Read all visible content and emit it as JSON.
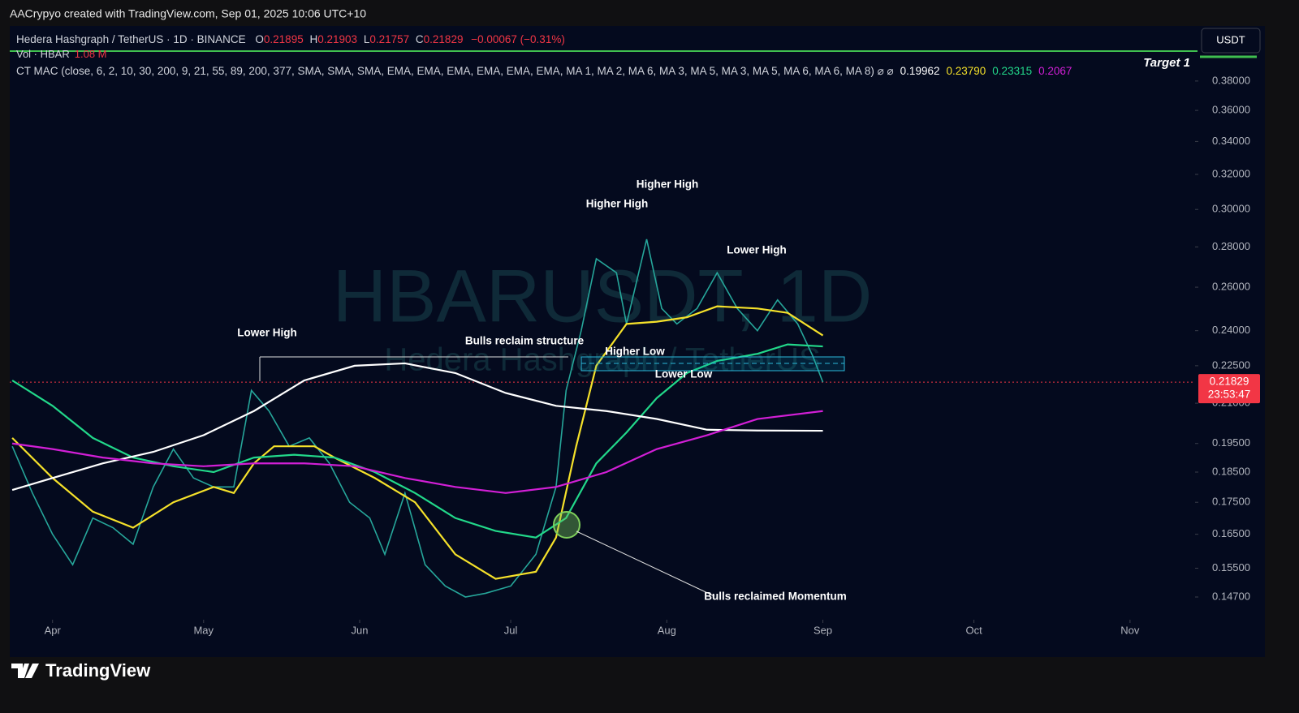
{
  "header": {
    "credit": "AACrypyo created with TradingView.com, Sep 01, 2025 10:06 UTC+10",
    "symbol": "Hedera Hashgraph / TetherUS · 1D · BINANCE",
    "ohlc": [
      {
        "key": "O",
        "value": "0.21895"
      },
      {
        "key": "H",
        "value": "0.21903"
      },
      {
        "key": "L",
        "value": "0.21757"
      },
      {
        "key": "C",
        "value": "0.21829"
      }
    ],
    "change": "−0.00067 (−0.31%)",
    "volume_label": "Vol · HBAR",
    "volume_value": "1.08 M",
    "indicator": "CT MAC (close, 6, 2, 10, 30, 200, 9, 21, 55, 89, 200, 377, SMA, SMA, SMA, EMA, EMA, EMA, EMA, EMA, EMA, MA 1, MA 2, MA 6, MA 3, MA 5, MA 3, MA 5, MA 6, MA 6, MA 8) ⌀ ⌀",
    "indicator_values": [
      {
        "text": "0.19962",
        "color": "#ffffff"
      },
      {
        "text": "0.23790",
        "color": "#f5e12a"
      },
      {
        "text": "0.23315",
        "color": "#22d88a"
      },
      {
        "text": "0.2067",
        "color": "#d21fd6"
      }
    ],
    "currency_button": "USDT",
    "logo": "TradingView"
  },
  "chart_data": {
    "type": "line",
    "log_scale": true,
    "watermark": "HBARUSDT, 1D",
    "watermark_sub": "Hedera Hashgraph / TetherUS",
    "xlim": [
      -8.5,
      226.6
    ],
    "ylim": [
      0.1414,
      0.4218
    ],
    "xticks": [
      {
        "value": 0,
        "label": "Apr"
      },
      {
        "value": 30,
        "label": "May"
      },
      {
        "value": 61,
        "label": "Jun"
      },
      {
        "value": 91,
        "label": "Jul"
      },
      {
        "value": 122,
        "label": "Aug"
      },
      {
        "value": 153,
        "label": "Sep"
      },
      {
        "value": 183,
        "label": "Oct"
      },
      {
        "value": 214,
        "label": "Nov"
      }
    ],
    "yticks": [
      {
        "value": 0.147,
        "label": "0.14700"
      },
      {
        "value": 0.155,
        "label": "0.15500"
      },
      {
        "value": 0.165,
        "label": "0.16500"
      },
      {
        "value": 0.175,
        "label": "0.17500"
      },
      {
        "value": 0.185,
        "label": "0.18500"
      },
      {
        "value": 0.195,
        "label": "0.19500"
      },
      {
        "value": 0.21,
        "label": "0.21000"
      },
      {
        "value": 0.225,
        "label": "0.22500"
      },
      {
        "value": 0.24,
        "label": "0.24000"
      },
      {
        "value": 0.26,
        "label": "0.26000"
      },
      {
        "value": 0.28,
        "label": "0.28000"
      },
      {
        "value": 0.3,
        "label": "0.30000"
      },
      {
        "value": 0.32,
        "label": "0.32000"
      },
      {
        "value": 0.34,
        "label": "0.34000"
      },
      {
        "value": 0.36,
        "label": "0.36000"
      },
      {
        "value": 0.38,
        "label": "0.38000"
      }
    ],
    "series": [
      {
        "color": "#26a69a",
        "x": [
          -8,
          -4,
          0,
          4,
          8,
          12,
          16,
          20,
          24,
          28,
          32,
          36,
          39.5,
          43,
          47,
          51,
          55,
          59,
          63,
          66,
          70,
          74,
          78,
          82,
          86,
          91,
          96,
          100,
          102,
          105,
          108,
          112,
          114,
          118,
          121,
          124,
          128,
          132,
          136,
          140,
          144,
          148,
          151,
          153
        ],
        "values": [
          0.194,
          0.178,
          0.165,
          0.156,
          0.17,
          0.167,
          0.162,
          0.18,
          0.193,
          0.183,
          0.18,
          0.18,
          0.215,
          0.207,
          0.194,
          0.197,
          0.188,
          0.175,
          0.17,
          0.159,
          0.178,
          0.156,
          0.15,
          0.147,
          0.148,
          0.15,
          0.159,
          0.18,
          0.215,
          0.24,
          0.274,
          0.267,
          0.243,
          0.284,
          0.25,
          0.243,
          0.25,
          0.267,
          0.25,
          0.24,
          0.254,
          0.243,
          0.229,
          0.21829
        ]
      },
      {
        "color": "#f5e12a",
        "x": [
          -8,
          0,
          8,
          16,
          24,
          32,
          36,
          40,
          44,
          52,
          56,
          64,
          72,
          80,
          88,
          96,
          100,
          104,
          108,
          114,
          120,
          126,
          132,
          140,
          146,
          153
        ],
        "values": [
          0.197,
          0.183,
          0.172,
          0.167,
          0.175,
          0.18,
          0.178,
          0.188,
          0.194,
          0.194,
          0.19,
          0.183,
          0.175,
          0.159,
          0.152,
          0.154,
          0.164,
          0.194,
          0.225,
          0.243,
          0.244,
          0.246,
          0.251,
          0.25,
          0.248,
          0.2379
        ]
      },
      {
        "color": "#22d88a",
        "x": [
          -8,
          0,
          8,
          16,
          24,
          32,
          40,
          48,
          56,
          64,
          72,
          80,
          88,
          96,
          102,
          108,
          114,
          120,
          126,
          132,
          140,
          146,
          153
        ],
        "values": [
          0.219,
          0.209,
          0.197,
          0.19,
          0.187,
          0.185,
          0.19,
          0.191,
          0.19,
          0.185,
          0.178,
          0.17,
          0.166,
          0.164,
          0.17,
          0.188,
          0.199,
          0.212,
          0.222,
          0.227,
          0.23,
          0.234,
          0.23315
        ]
      },
      {
        "color": "#ffffff",
        "x": [
          -8,
          0,
          10,
          20,
          30,
          40,
          50,
          60,
          70,
          80,
          90,
          100,
          110,
          120,
          130,
          140,
          153
        ],
        "values": [
          0.179,
          0.183,
          0.188,
          0.192,
          0.198,
          0.207,
          0.219,
          0.225,
          0.226,
          0.222,
          0.214,
          0.209,
          0.207,
          0.204,
          0.2,
          0.1997,
          0.19962
        ]
      },
      {
        "color": "#d21fd6",
        "x": [
          -8,
          0,
          10,
          20,
          30,
          40,
          50,
          60,
          70,
          80,
          90,
          100,
          110,
          120,
          130,
          140,
          153
        ],
        "values": [
          0.195,
          0.193,
          0.19,
          0.188,
          0.187,
          0.188,
          0.188,
          0.187,
          0.183,
          0.18,
          0.178,
          0.18,
          0.185,
          0.193,
          0.198,
          0.204,
          0.207
        ]
      }
    ],
    "last_price": 0.21829,
    "countdown": "23:53:47",
    "target_label": "Target 1",
    "annotations": [
      "Higher High",
      "Higher High",
      "Lower High",
      "Lower High",
      "Bulls reclaim structure",
      "Higher Low",
      "Lower Low",
      "Bulls reclaimed Momentum"
    ]
  }
}
